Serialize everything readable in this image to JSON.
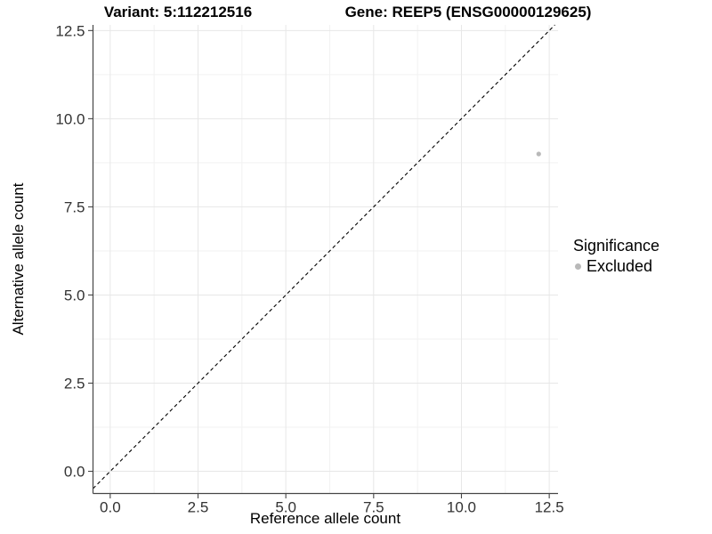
{
  "header": {
    "variant_title": "Variant: 5:112212516",
    "gene_title": "Gene: REEP5 (ENSG00000129625)"
  },
  "axes": {
    "x_label": "Reference allele count",
    "y_label": "Alternative allele count"
  },
  "legend": {
    "title": "Significance",
    "items": [
      {
        "label": "Excluded",
        "color": "#b9b9b9"
      }
    ]
  },
  "chart_data": {
    "type": "scatter",
    "title": "Variant: 5:112212516 | Gene: REEP5 (ENSG00000129625)",
    "xlabel": "Reference allele count",
    "ylabel": "Alternative allele count",
    "xlim": [
      -0.49,
      12.75
    ],
    "ylim": [
      -0.63,
      12.66
    ],
    "x_ticks": {
      "values": [
        0,
        2.5,
        5,
        7.5,
        10,
        12.5
      ],
      "labels": [
        "0.0",
        "2.5",
        "5.0",
        "7.5",
        "10.0",
        "12.5"
      ]
    },
    "y_ticks": {
      "values": [
        0,
        2.5,
        5,
        7.5,
        10,
        12.5
      ],
      "labels": [
        "0.0",
        "2.5",
        "5.0",
        "7.5",
        "10.0",
        "12.5"
      ]
    },
    "x_minor_ticks": [
      1.25,
      3.75,
      6.25,
      8.75,
      11.25
    ],
    "y_minor_ticks": [
      1.25,
      3.75,
      6.25,
      8.75,
      11.25
    ],
    "grid": true,
    "legend_position": "right",
    "series": [
      {
        "name": "Excluded",
        "color": "#b9b9b9",
        "points": [
          {
            "x": 12.2,
            "y": 9.0
          }
        ]
      }
    ],
    "reference_line": {
      "type": "identity",
      "equation": "y = x",
      "style": "dashed",
      "color": "#000000"
    },
    "colors": {
      "background": "#ffffff",
      "grid_major": "#e7e7e7",
      "grid_minor": "#f2f2f2",
      "axis_line": "#464646",
      "tick_label": "#333333",
      "point": "#b9b9b9"
    }
  }
}
